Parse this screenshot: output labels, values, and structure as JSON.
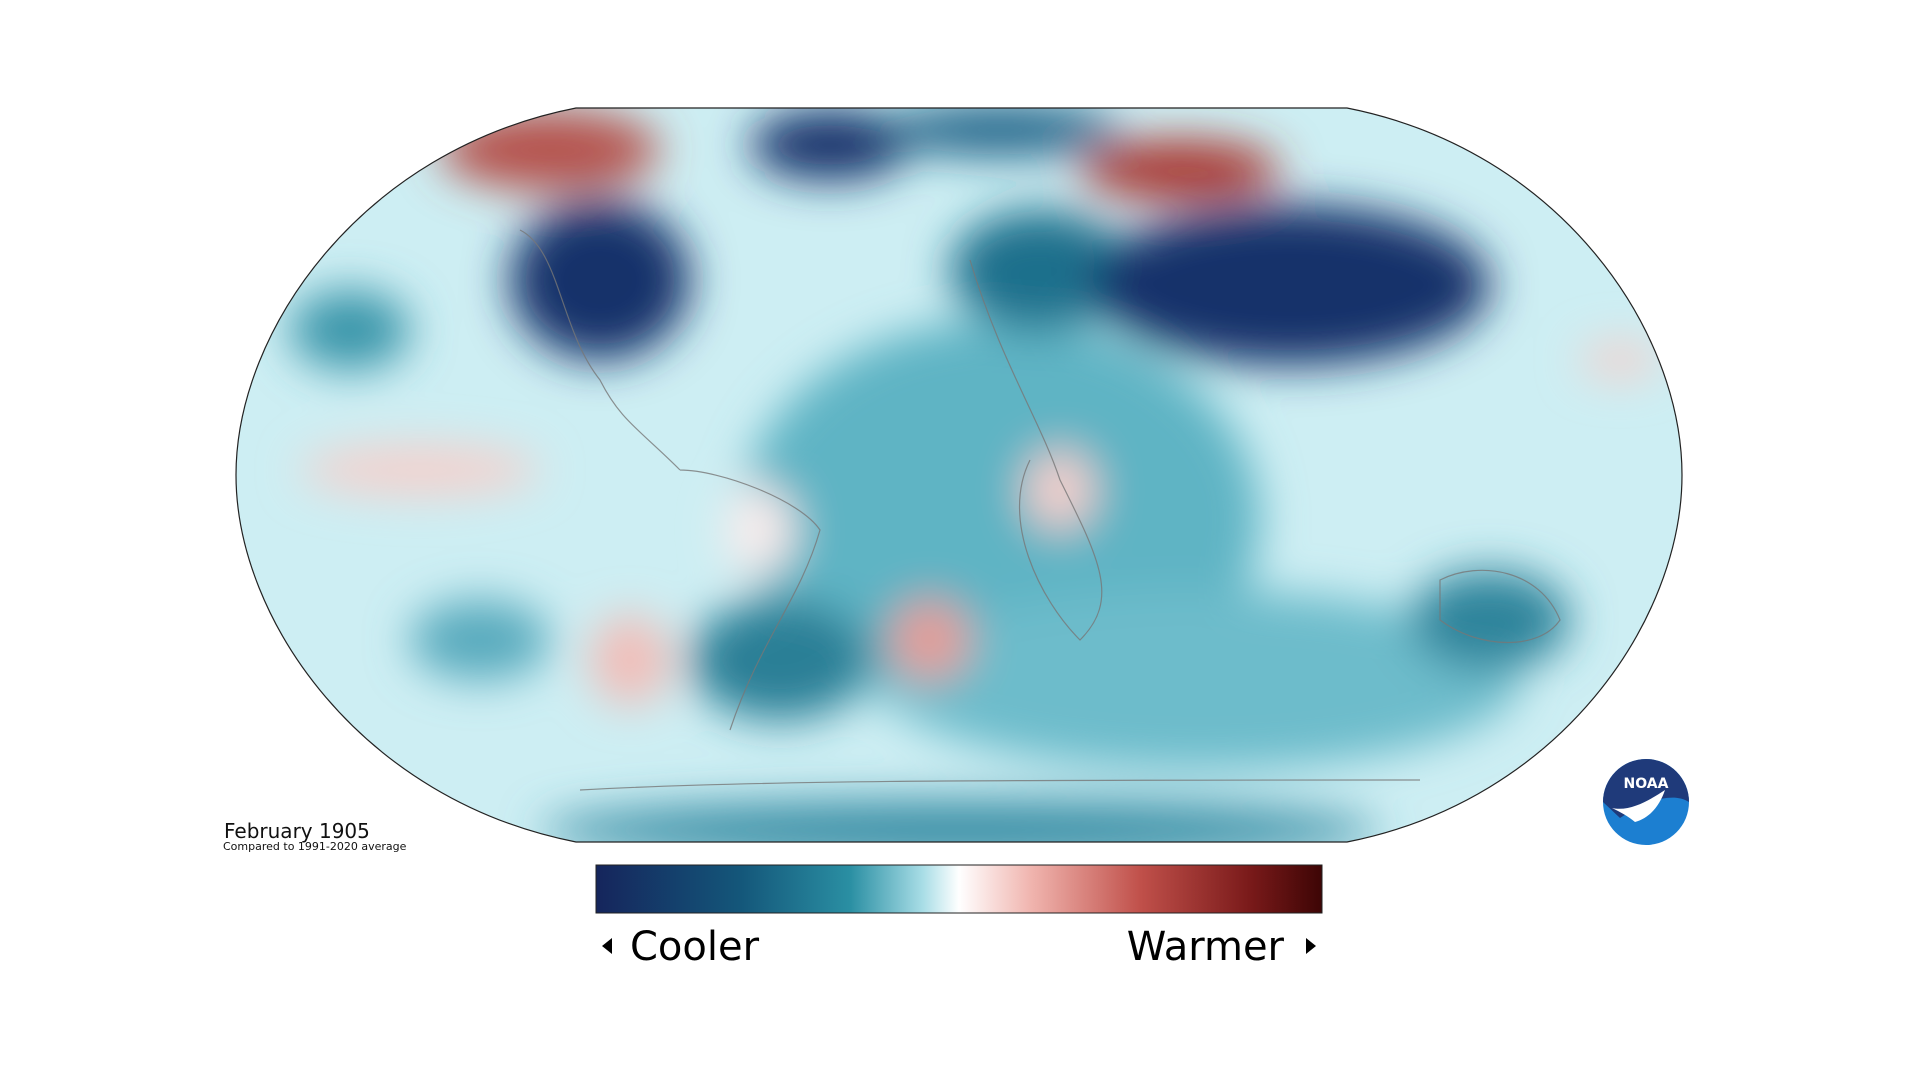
{
  "map": {
    "title": "February 1905",
    "subtitle": "Compared to 1991-2020 average"
  },
  "legend": {
    "low": "Cooler",
    "high": "Warmer"
  },
  "logo": "NOAA"
}
